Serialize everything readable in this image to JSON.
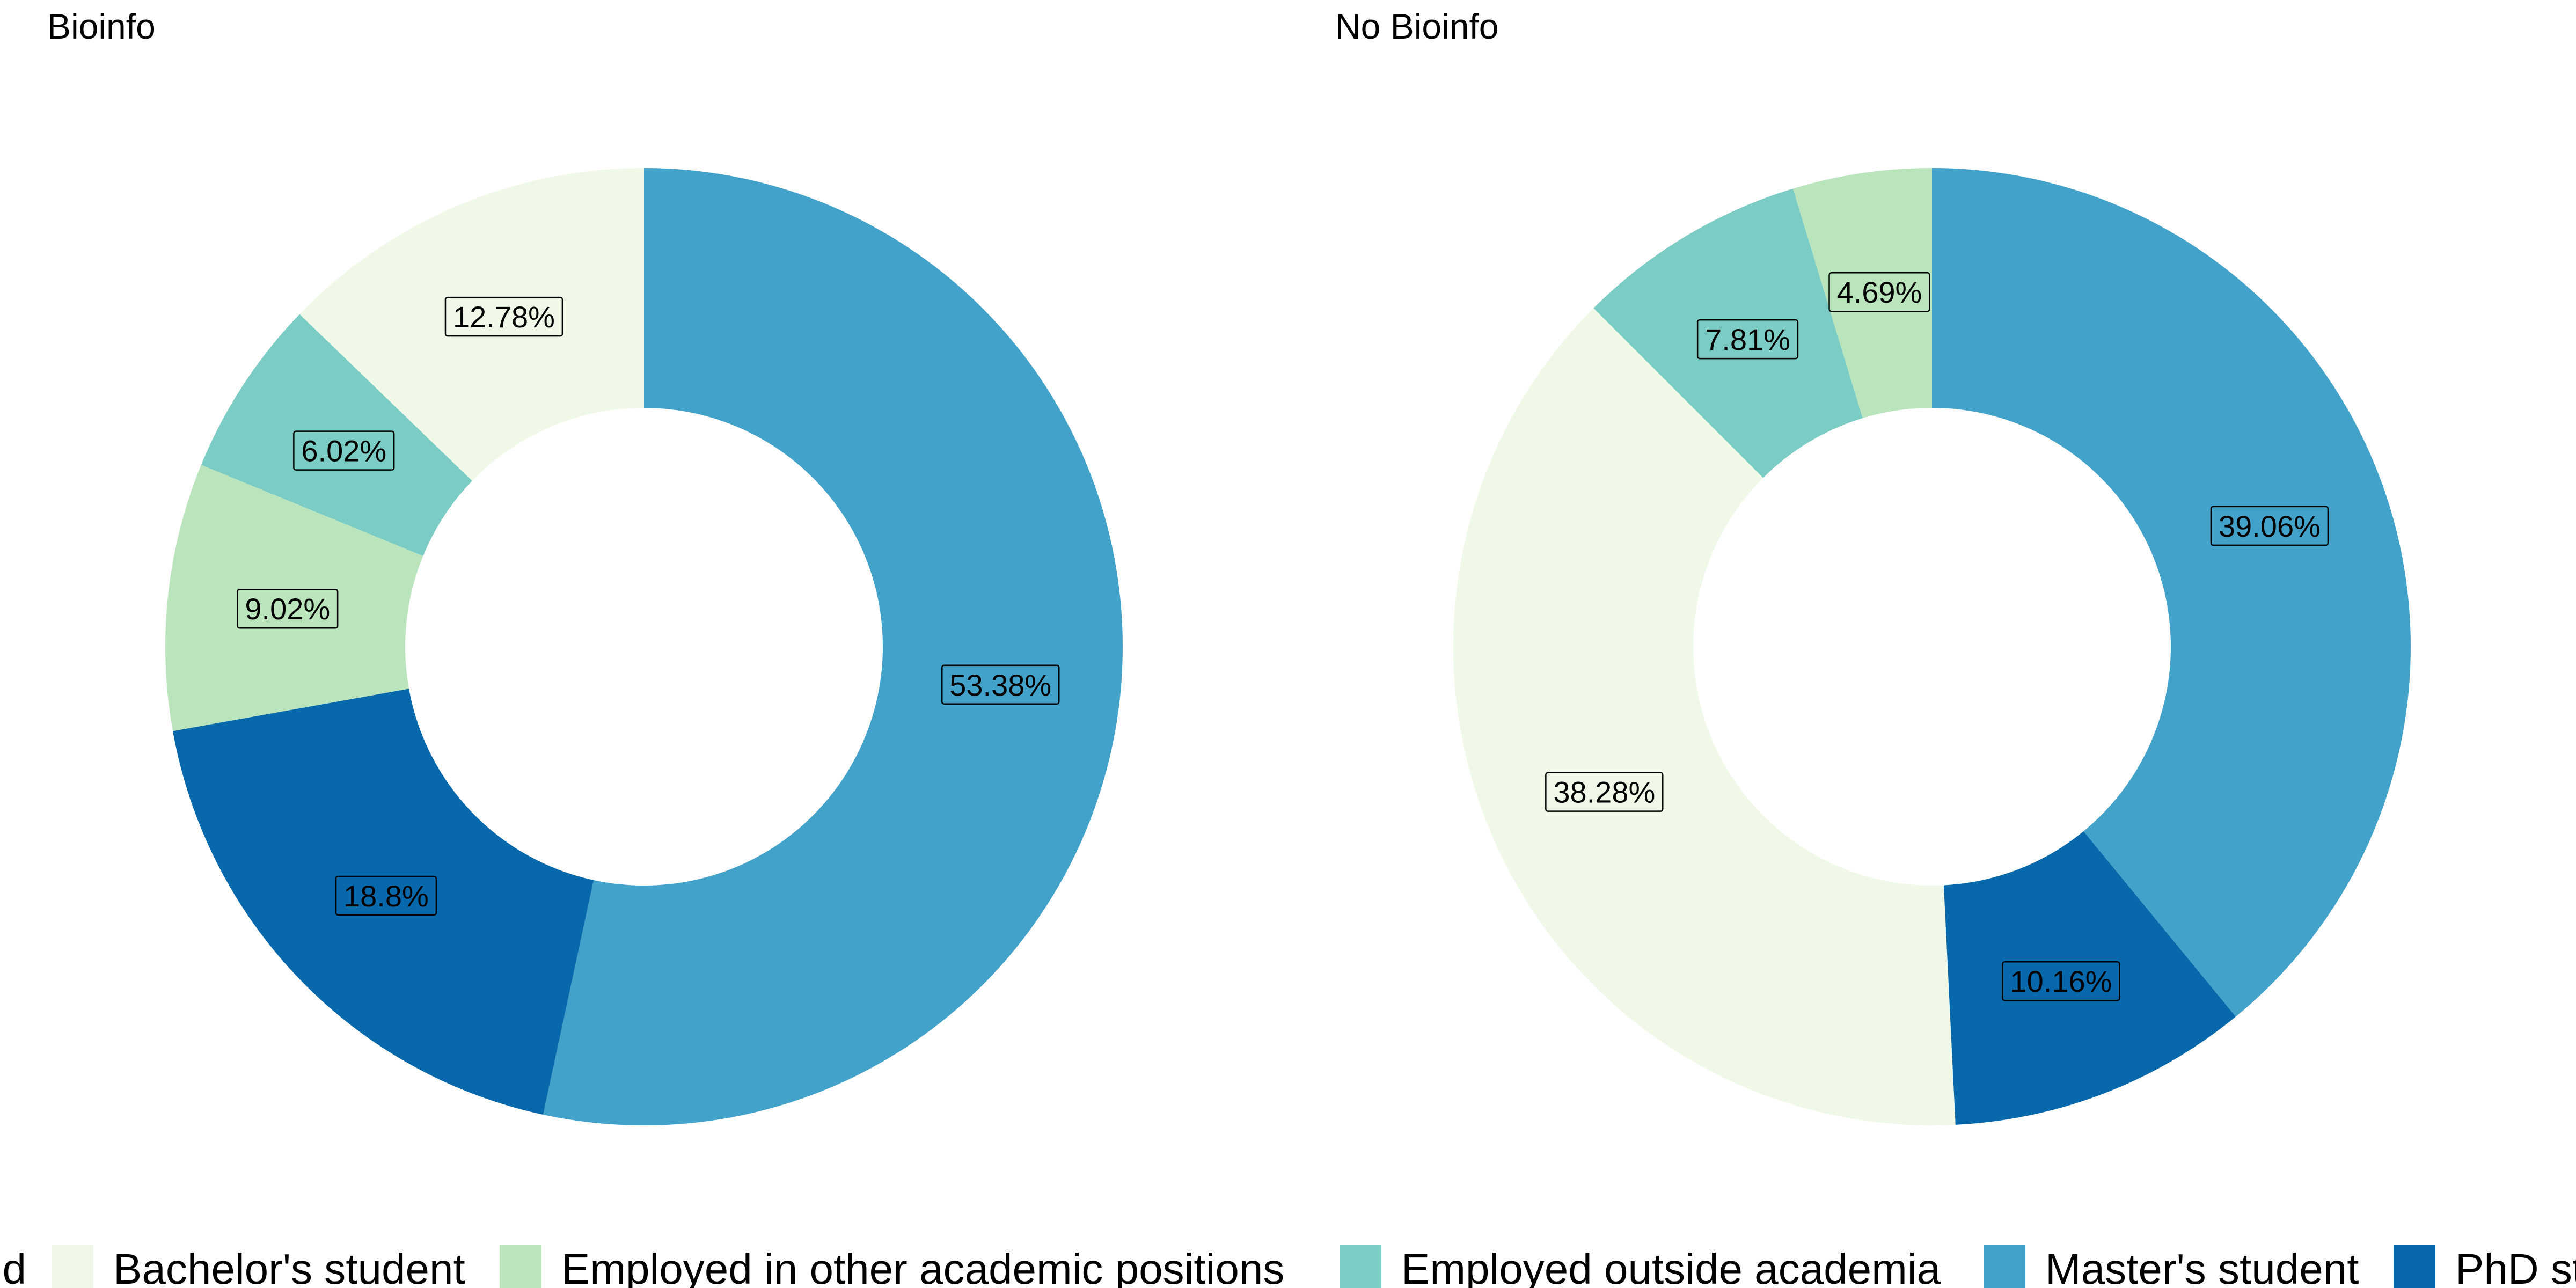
{
  "chart_data": {
    "type": "pie",
    "style": "donut",
    "panels": [
      {
        "title": "Bioinfo",
        "slices": [
          {
            "category": "Master's student",
            "value": 53.38,
            "label": "53.38%"
          },
          {
            "category": "PhD student",
            "value": 18.8,
            "label": "18.8%"
          },
          {
            "category": "Employed in other academic positions",
            "value": 9.02,
            "label": "9.02%"
          },
          {
            "category": "Employed outside academia",
            "value": 6.02,
            "label": "6.02%"
          },
          {
            "category": "Bachelor's student",
            "value": 12.78,
            "label": "12.78%"
          }
        ]
      },
      {
        "title": "No Bioinfo",
        "slices": [
          {
            "category": "Master's student",
            "value": 39.06,
            "label": "39.06%"
          },
          {
            "category": "PhD student",
            "value": 10.16,
            "label": "10.16%"
          },
          {
            "category": "Bachelor's student",
            "value": 38.28,
            "label": "38.28%"
          },
          {
            "category": "Employed outside academia",
            "value": 7.81,
            "label": "7.81%"
          },
          {
            "category": "Employed in other academic positions",
            "value": 4.69,
            "label": "4.69%"
          }
        ]
      }
    ],
    "legend": {
      "position": "bottom",
      "title_fragment": "nd",
      "items": [
        {
          "name": "Bachelor's student",
          "color": "#f0f8e8"
        },
        {
          "name": "Employed in other academic positions",
          "color": "#bae4bc"
        },
        {
          "name": "Employed outside academia",
          "color": "#7bccc4"
        },
        {
          "name": "Master's student",
          "color": "#43a2ca"
        },
        {
          "name": "PhD st",
          "color": "#0868ac"
        }
      ]
    }
  }
}
